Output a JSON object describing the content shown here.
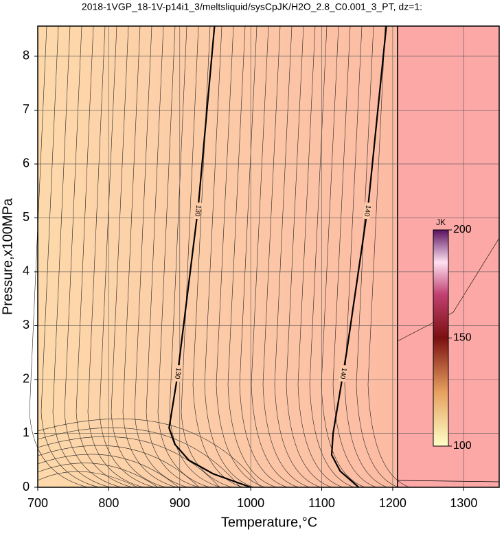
{
  "chart_data": {
    "type": "contour",
    "title": "2018-1VGP_18-1V-p14i1_3/meltsliquid/sysCpJK/H2O_2.8_C0.001_3_PT, dz=1:",
    "x_label": "Temperature,°C",
    "y_label": "Pressure,x100MPa",
    "xlim": [
      700,
      1350
    ],
    "ylim": [
      0,
      8.56
    ],
    "xticks": [
      700,
      800,
      900,
      1000,
      1100,
      1200,
      1300
    ],
    "yticks": [
      0,
      1,
      2,
      3,
      4,
      5,
      6,
      7,
      8
    ],
    "grid": true,
    "contours": [
      {
        "level": 130,
        "x": [
          1000,
          947,
          913,
          893,
          885,
          896,
          926,
          949
        ],
        "y": [
          0,
          0.25,
          0.5,
          0.8,
          1.1,
          2,
          5.2,
          8.56
        ]
      },
      {
        "level": 140,
        "x": [
          1152,
          1126,
          1114,
          1116,
          1135,
          1166,
          1191
        ],
        "y": [
          0,
          0.3,
          0.6,
          1,
          2.5,
          5.3,
          8.56
        ]
      }
    ],
    "colorbar": {
      "label": "JK",
      "lim": [
        100,
        200
      ],
      "ticks": [
        100,
        150,
        200
      ]
    }
  }
}
